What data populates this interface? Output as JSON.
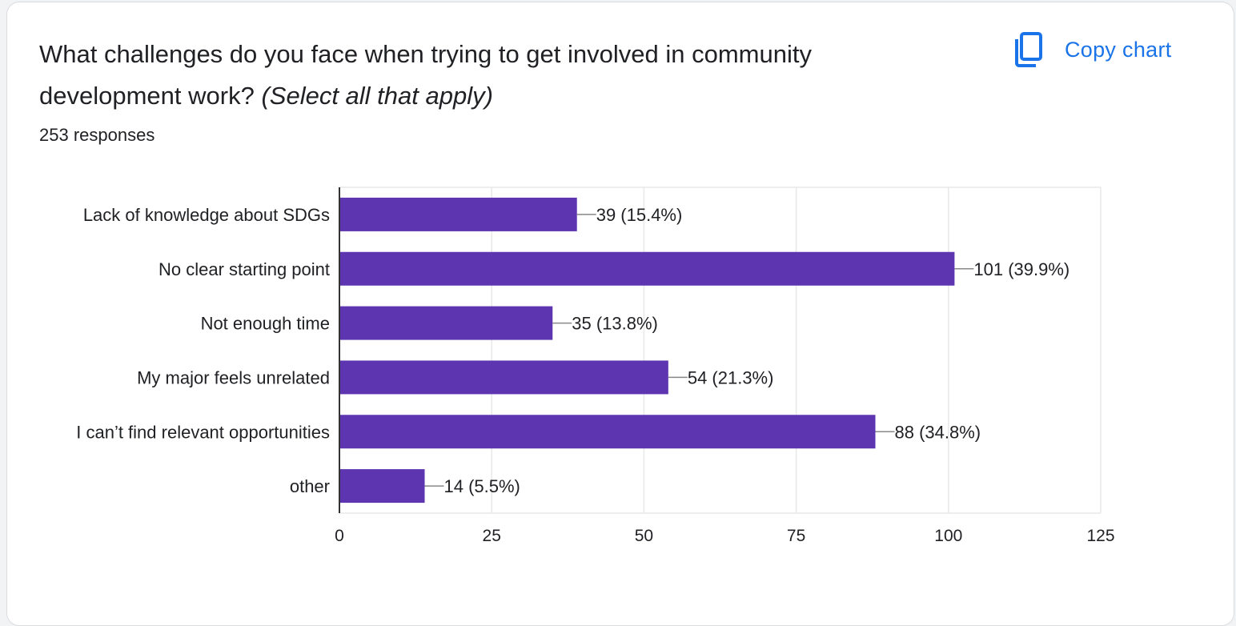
{
  "card": {
    "question_main": "What challenges do you face when trying to get involved in community development work?",
    "question_hint": "(Select all that apply)",
    "responses": "253 responses",
    "copy_label": "Copy chart",
    "copy_icon": "copy-icon"
  },
  "colors": {
    "bar": "#5e35b1",
    "accent": "#1a73e8",
    "grid": "#e8e8e8",
    "axis": "#333333"
  },
  "chart_data": {
    "type": "bar",
    "orientation": "horizontal",
    "title": "",
    "xlabel": "",
    "ylabel": "",
    "categories": [
      "Lack of knowledge about SDGs",
      "No clear starting point",
      "Not enough time",
      "My major feels unrelated",
      "I can’t find relevant opportunities",
      "other"
    ],
    "values": [
      39,
      101,
      35,
      54,
      88,
      14
    ],
    "data_labels": [
      "39 (15.4%)",
      "101 (39.9%)",
      "35 (13.8%)",
      "54 (21.3%)",
      "88 (34.8%)",
      "14 (5.5%)"
    ],
    "xlim": [
      0,
      125
    ],
    "xticks": [
      0,
      25,
      50,
      75,
      100,
      125
    ],
    "xtick_labels": [
      "0",
      "25",
      "50",
      "75",
      "100",
      "125"
    ],
    "grid": true,
    "legend": "none"
  }
}
